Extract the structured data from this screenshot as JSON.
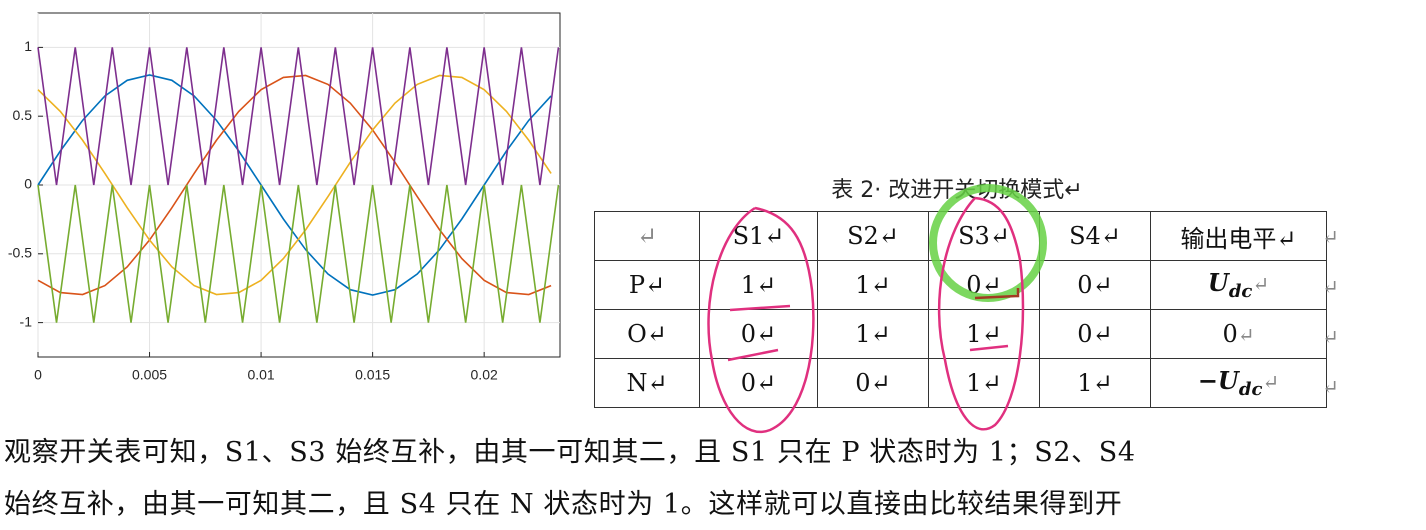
{
  "chart_data": {
    "type": "line",
    "xlim": [
      0,
      0.0234
    ],
    "ylim": [
      -1.25,
      1.25
    ],
    "xticks": [
      0,
      0.005,
      0.01,
      0.015,
      0.02
    ],
    "yticks": [
      -1,
      -0.5,
      0,
      0.5,
      1
    ],
    "grid": true,
    "series": [
      {
        "color": "#0072bd",
        "x": [
          0,
          0.001,
          0.002,
          0.003,
          0.004,
          0.005,
          0.006,
          0.007,
          0.008,
          0.009,
          0.01,
          0.011,
          0.012,
          0.013,
          0.014,
          0.015,
          0.016,
          0.017,
          0.018,
          0.019,
          0.02,
          0.021,
          0.022,
          0.023
        ],
        "values": [
          0,
          0.247,
          0.47,
          0.647,
          0.761,
          0.8,
          0.761,
          0.647,
          0.47,
          0.247,
          0,
          -0.247,
          -0.47,
          -0.647,
          -0.761,
          -0.8,
          -0.761,
          -0.647,
          -0.47,
          -0.247,
          0,
          0.247,
          0.47,
          0.647
        ]
      },
      {
        "color": "#d95319",
        "x": [
          0,
          0.001,
          0.002,
          0.003,
          0.004,
          0.005,
          0.006,
          0.007,
          0.008,
          0.009,
          0.01,
          0.011,
          0.012,
          0.013,
          0.014,
          0.015,
          0.016,
          0.017,
          0.018,
          0.019,
          0.02,
          0.021,
          0.022,
          0.023
        ],
        "values": [
          -0.693,
          -0.782,
          -0.796,
          -0.731,
          -0.595,
          -0.4,
          -0.166,
          0.084,
          0.325,
          0.535,
          0.693,
          0.782,
          0.796,
          0.731,
          0.595,
          0.4,
          0.166,
          -0.084,
          -0.325,
          -0.535,
          -0.693,
          -0.782,
          -0.796,
          -0.731
        ]
      },
      {
        "color": "#edb120",
        "x": [
          0,
          0.001,
          0.002,
          0.003,
          0.004,
          0.005,
          0.006,
          0.007,
          0.008,
          0.009,
          0.01,
          0.011,
          0.012,
          0.013,
          0.014,
          0.015,
          0.016,
          0.017,
          0.018,
          0.019,
          0.02,
          0.021,
          0.022,
          0.023
        ],
        "values": [
          0.693,
          0.535,
          0.325,
          0.084,
          -0.166,
          -0.4,
          -0.595,
          -0.731,
          -0.796,
          -0.782,
          -0.693,
          -0.535,
          -0.325,
          -0.084,
          0.166,
          0.4,
          0.595,
          0.731,
          0.796,
          0.782,
          0.693,
          0.535,
          0.325,
          0.084
        ]
      },
      {
        "color": "#7e2f8e",
        "x": [
          0,
          0.00083,
          0.00167,
          0.0025,
          0.00333,
          0.00417,
          0.005,
          0.00583,
          0.00667,
          0.0075,
          0.00833,
          0.00917,
          0.01,
          0.01083,
          0.01167,
          0.0125,
          0.01333,
          0.01417,
          0.015,
          0.01583,
          0.01667,
          0.0175,
          0.01833,
          0.01917,
          0.02,
          0.02083,
          0.02167,
          0.0225,
          0.02333
        ],
        "values": [
          1,
          0,
          1,
          0,
          1,
          0,
          1,
          0,
          1,
          0,
          1,
          0,
          1,
          0,
          1,
          0,
          1,
          0,
          1,
          0,
          1,
          0,
          1,
          0,
          1,
          0,
          1,
          0,
          1
        ]
      },
      {
        "color": "#77ac30",
        "x": [
          0,
          0.00083,
          0.00167,
          0.0025,
          0.00333,
          0.00417,
          0.005,
          0.00583,
          0.00667,
          0.0075,
          0.00833,
          0.00917,
          0.01,
          0.01083,
          0.01167,
          0.0125,
          0.01333,
          0.01417,
          0.015,
          0.01583,
          0.01667,
          0.0175,
          0.01833,
          0.01917,
          0.02,
          0.02083,
          0.02167,
          0.0225,
          0.02333
        ],
        "values": [
          0,
          -1,
          0,
          -1,
          0,
          -1,
          0,
          -1,
          0,
          -1,
          0,
          -1,
          0,
          -1,
          0,
          -1,
          0,
          -1,
          0,
          -1,
          0,
          -1,
          0,
          -1,
          0,
          -1,
          0,
          -1,
          0
        ]
      }
    ]
  },
  "table": {
    "caption": "表 2· 改进开关切换模式↵",
    "header": [
      "↵",
      "S1↵",
      "S2↵",
      "S3↵",
      "S4↵",
      "输出电平↵"
    ],
    "rows": [
      {
        "label": "P↵",
        "cells": [
          "1↵",
          "1↵",
          "0↵",
          "0↵"
        ],
        "output": {
          "text": "U",
          "sub": "dc",
          "after": "↵"
        }
      },
      {
        "label": "O↵",
        "cells": [
          "0↵",
          "1↵",
          "1↵",
          "0↵"
        ],
        "output": {
          "text": "0",
          "after": "↵"
        }
      },
      {
        "label": "N↵",
        "cells": [
          "0↵",
          "0↵",
          "1↵",
          "1↵"
        ],
        "output": {
          "text": "−U",
          "sub": "dc",
          "after": "↵"
        }
      }
    ],
    "row_end": "↵"
  },
  "paragraph": [
    "观察开关表可知，S1、S3 始终互补，由其一可知其二，且 S1 只在 P 状态时为 1；S2、S4",
    "始终互补，由其一可知其二，且 S4 只在 N 状态时为 1。这样就可以直接由比较结果得到开"
  ]
}
